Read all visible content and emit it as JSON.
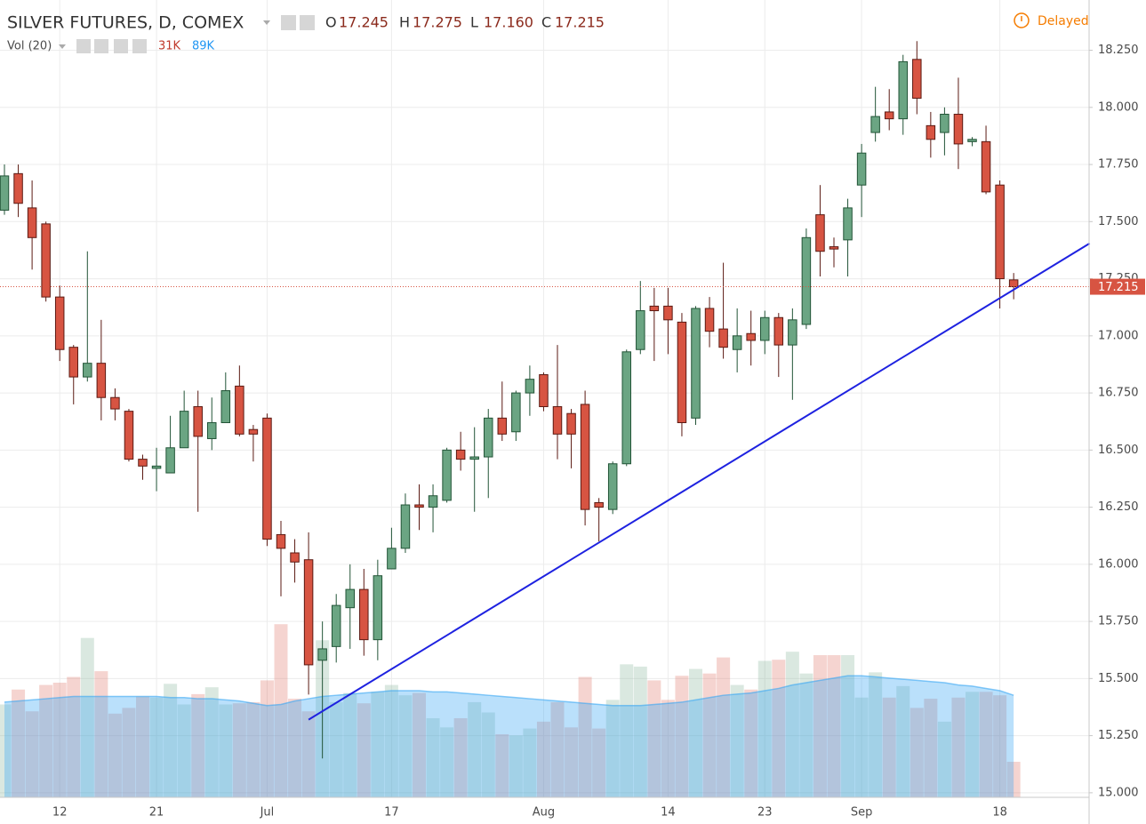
{
  "chart_data": {
    "type": "candlestick",
    "title": "SILVER FUTURES, D, COMEX",
    "ohlc_header": [
      {
        "key": "O",
        "value": "17.245"
      },
      {
        "key": "H",
        "value": "17.275"
      },
      {
        "key": "L",
        "value": "17.160"
      },
      {
        "key": "C",
        "value": "17.215"
      }
    ],
    "status": "Delayed",
    "categories": [
      null,
      null,
      null,
      null,
      "12",
      null,
      null,
      null,
      null,
      null,
      null,
      "21",
      null,
      null,
      null,
      null,
      null,
      null,
      null,
      "Jul",
      null,
      null,
      null,
      null,
      null,
      null,
      null,
      null,
      "17",
      null,
      null,
      null,
      null,
      null,
      null,
      null,
      null,
      null,
      null,
      "Aug",
      null,
      null,
      null,
      null,
      null,
      null,
      null,
      null,
      "14",
      null,
      null,
      null,
      null,
      null,
      null,
      "23",
      null,
      null,
      null,
      null,
      null,
      null,
      "Sep",
      null,
      null,
      null,
      null,
      null,
      null,
      null,
      null,
      null,
      "18",
      null
    ],
    "open": [
      17.55,
      17.71,
      17.56,
      17.49,
      17.17,
      16.95,
      16.82,
      16.88,
      16.73,
      16.67,
      16.46,
      16.42,
      16.4,
      16.51,
      16.69,
      16.55,
      16.62,
      16.78,
      16.59,
      16.64,
      16.13,
      16.05,
      16.02,
      15.58,
      15.64,
      15.81,
      15.89,
      15.67,
      15.98,
      16.07,
      16.26,
      16.25,
      16.28,
      16.5,
      16.46,
      16.47,
      16.64,
      16.58,
      16.75,
      16.83,
      16.69,
      16.66,
      16.7,
      16.27,
      16.24,
      16.44,
      16.94,
      17.13,
      17.13,
      17.06,
      16.64,
      17.12,
      17.03,
      16.94,
      17.01,
      16.98,
      17.08,
      16.96,
      17.05,
      17.53,
      17.39,
      17.42,
      17.66,
      17.89,
      17.98,
      17.95,
      18.21,
      17.92,
      17.89,
      17.97,
      17.85,
      17.85,
      17.66,
      17.245
    ],
    "high": [
      17.75,
      17.75,
      17.68,
      17.5,
      17.22,
      16.96,
      17.37,
      17.07,
      16.77,
      16.68,
      16.48,
      16.51,
      16.65,
      16.76,
      16.76,
      16.73,
      16.84,
      16.87,
      16.61,
      16.66,
      16.19,
      16.11,
      16.14,
      15.75,
      15.87,
      16.0,
      15.98,
      16.02,
      16.16,
      16.31,
      16.35,
      16.35,
      16.51,
      16.58,
      16.6,
      16.68,
      16.8,
      16.76,
      16.87,
      16.84,
      16.96,
      16.68,
      16.76,
      16.29,
      16.45,
      16.94,
      17.24,
      17.21,
      17.21,
      17.1,
      17.13,
      17.17,
      17.32,
      17.12,
      17.11,
      17.11,
      17.1,
      17.12,
      17.47,
      17.66,
      17.43,
      17.6,
      17.84,
      18.09,
      18.08,
      18.23,
      18.29,
      17.98,
      18.0,
      18.13,
      17.87,
      17.92,
      17.68,
      17.275
    ],
    "low": [
      17.53,
      17.52,
      17.29,
      17.15,
      16.89,
      16.7,
      16.8,
      16.63,
      16.63,
      16.45,
      16.37,
      16.32,
      16.4,
      16.51,
      16.23,
      16.5,
      16.62,
      16.56,
      16.45,
      16.08,
      15.86,
      15.92,
      15.43,
      15.15,
      15.57,
      15.63,
      15.6,
      15.58,
      15.98,
      16.05,
      16.15,
      16.14,
      16.27,
      16.41,
      16.23,
      16.29,
      16.54,
      16.54,
      16.65,
      16.67,
      16.46,
      16.42,
      16.17,
      16.1,
      16.22,
      16.43,
      16.92,
      16.89,
      16.92,
      16.56,
      16.61,
      16.95,
      16.9,
      16.84,
      16.87,
      16.92,
      16.82,
      16.72,
      17.03,
      17.26,
      17.3,
      17.26,
      17.52,
      17.85,
      17.9,
      17.88,
      17.97,
      17.78,
      17.79,
      17.73,
      17.83,
      17.62,
      17.12,
      17.16
    ],
    "close": [
      17.7,
      17.58,
      17.43,
      17.17,
      16.94,
      16.82,
      16.88,
      16.73,
      16.68,
      16.46,
      16.43,
      16.43,
      16.51,
      16.67,
      16.56,
      16.62,
      16.76,
      16.57,
      16.57,
      16.11,
      16.07,
      16.01,
      15.56,
      15.63,
      15.82,
      15.89,
      15.67,
      15.95,
      16.07,
      16.26,
      16.25,
      16.3,
      16.5,
      16.46,
      16.47,
      16.64,
      16.57,
      16.75,
      16.81,
      16.69,
      16.57,
      16.57,
      16.24,
      16.25,
      16.44,
      16.93,
      17.11,
      17.11,
      17.07,
      16.62,
      17.12,
      17.02,
      16.95,
      17.0,
      16.98,
      17.08,
      16.96,
      17.07,
      17.43,
      17.37,
      17.38,
      17.56,
      17.8,
      17.96,
      17.95,
      18.2,
      18.04,
      17.86,
      17.97,
      17.84,
      17.86,
      17.63,
      17.25,
      17.215
    ],
    "up_color": "#6ba583",
    "down_color": "#d75442",
    "volume": {
      "name": "Vol (20)",
      "last_label": "31K",
      "ma_label": "89K",
      "values": [
        81,
        94,
        75,
        98,
        100,
        105,
        139,
        110,
        73,
        78,
        88,
        87,
        99,
        81,
        90,
        96,
        81,
        82,
        83,
        102,
        151,
        86,
        75,
        137,
        83,
        91,
        82,
        92,
        98,
        89,
        91,
        69,
        61,
        69,
        83,
        74,
        55,
        54,
        60,
        66,
        83,
        61,
        105,
        60,
        85,
        116,
        114,
        102,
        85,
        106,
        112,
        108,
        122,
        98,
        94,
        119,
        120,
        127,
        108,
        124,
        124,
        124,
        87,
        109,
        87,
        97,
        78,
        86,
        66,
        87,
        92,
        92,
        89,
        31
      ],
      "ma_values": [
        83,
        84,
        85,
        86,
        87,
        88,
        88,
        88,
        88,
        88,
        88,
        88,
        87,
        87,
        86,
        86,
        85,
        84,
        82,
        80,
        81,
        84,
        86,
        88,
        89,
        90,
        91,
        92,
        93,
        93,
        93,
        92,
        92,
        91,
        90,
        89,
        88,
        87,
        86,
        85,
        84,
        83,
        82,
        81,
        80,
        80,
        80,
        81,
        82,
        83,
        85,
        87,
        89,
        90,
        91,
        93,
        95,
        98,
        100,
        102,
        104,
        106,
        106,
        105,
        104,
        103,
        102,
        101,
        100,
        98,
        97,
        95,
        93,
        89
      ],
      "ma_color": "#38a6f3",
      "up_color": "#6ba583",
      "down_color": "#d75442"
    },
    "trendline": {
      "x": [
        22,
        78.5
      ],
      "y": [
        15.32,
        17.405
      ],
      "color": "#1e22e0"
    },
    "last_price": {
      "value": 17.215,
      "label": "17.215",
      "color": "#d75442"
    },
    "ylim": [
      14.98,
      18.47
    ],
    "yticks": [
      {
        "value": 15.0,
        "label": "15.000"
      },
      {
        "value": 15.25,
        "label": "15.250"
      },
      {
        "value": 15.5,
        "label": "15.500"
      },
      {
        "value": 15.75,
        "label": "15.750"
      },
      {
        "value": 16.0,
        "label": "16.000"
      },
      {
        "value": 16.25,
        "label": "16.250"
      },
      {
        "value": 16.5,
        "label": "16.500"
      },
      {
        "value": 16.75,
        "label": "16.750"
      },
      {
        "value": 17.0,
        "label": "17.000"
      },
      {
        "value": 17.25,
        "label": "17.250"
      },
      {
        "value": 17.5,
        "label": "17.500"
      },
      {
        "value": 17.75,
        "label": "17.750"
      },
      {
        "value": 18.0,
        "label": "18.000"
      },
      {
        "value": 18.25,
        "label": "18.250"
      }
    ],
    "grid": true
  }
}
